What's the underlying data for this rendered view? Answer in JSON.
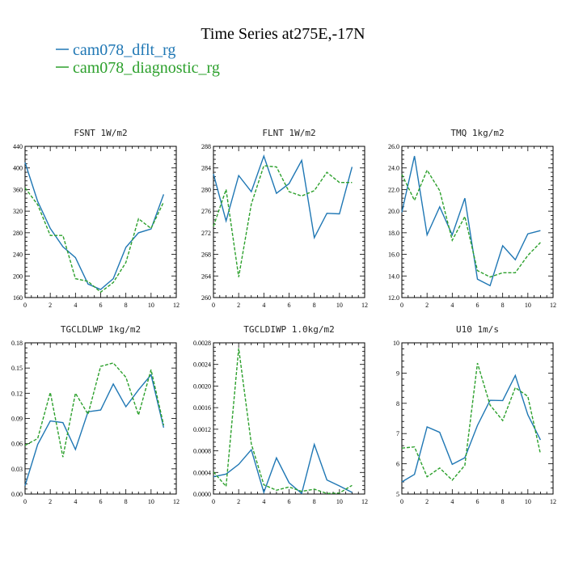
{
  "figure": {
    "title": "Time Series at275E,-17N",
    "legend": [
      {
        "label": "cam078_dflt_rg",
        "color": "#1f77b4"
      },
      {
        "label": "cam078_diagnostic_rg",
        "color": "#2ca02c"
      }
    ]
  },
  "chart_data": [
    {
      "type": "line",
      "title": "FSNT   1W/m2",
      "xlim": [
        0,
        12
      ],
      "ylim": [
        160,
        440
      ],
      "xticks": [
        "0",
        "2",
        "4",
        "6",
        "8",
        "10",
        "12"
      ],
      "yticks": [
        "160",
        "200",
        "240",
        "280",
        "320",
        "360",
        "400",
        "440"
      ],
      "x": [
        0,
        1,
        2,
        3,
        4,
        5,
        6,
        7,
        8,
        9,
        10,
        11
      ],
      "series": [
        {
          "name": "cam078_dflt_rg",
          "color": "#1f77b4",
          "dash": "solid",
          "values": [
            410,
            338,
            288,
            254,
            234,
            185,
            175,
            195,
            253,
            280,
            287,
            351
          ]
        },
        {
          "name": "cam078_diagnostic_rg",
          "color": "#2ca02c",
          "dash": "dashed",
          "values": [
            363,
            332,
            275,
            275,
            195,
            190,
            170,
            188,
            225,
            306,
            288,
            337
          ]
        }
      ]
    },
    {
      "type": "line",
      "title": "FLNT   1W/m2",
      "xlim": [
        0,
        12
      ],
      "ylim": [
        260,
        288
      ],
      "xticks": [
        "0",
        "2",
        "4",
        "6",
        "8",
        "10",
        "12"
      ],
      "yticks": [
        "260",
        "264",
        "268",
        "272",
        "276",
        "280",
        "284",
        "288"
      ],
      "x": [
        0,
        1,
        2,
        3,
        4,
        5,
        6,
        7,
        8,
        9,
        10,
        11
      ],
      "series": [
        {
          "name": "cam078_dflt_rg",
          "color": "#1f77b4",
          "dash": "solid",
          "values": [
            282.9,
            274.2,
            282.6,
            279.6,
            286.2,
            279.3,
            281.1,
            285.4,
            271.1,
            275.6,
            275.5,
            284.2
          ]
        },
        {
          "name": "cam078_diagnostic_rg",
          "color": "#2ca02c",
          "dash": "dashed",
          "values": [
            273.2,
            280.0,
            263.8,
            277.3,
            284.4,
            284.2,
            279.6,
            278.8,
            279.8,
            283.2,
            281.3,
            281.3
          ]
        }
      ]
    },
    {
      "type": "line",
      "title": "TMQ   1kg/m2",
      "xlim": [
        0,
        12
      ],
      "ylim": [
        12,
        26
      ],
      "xticks": [
        "0",
        "2",
        "4",
        "6",
        "8",
        "10",
        "12"
      ],
      "yticks": [
        "12.0",
        "14.0",
        "16.0",
        "18.0",
        "20.0",
        "22.0",
        "24.0",
        "26.0"
      ],
      "x": [
        0,
        1,
        2,
        3,
        4,
        5,
        6,
        7,
        8,
        9,
        10,
        11
      ],
      "series": [
        {
          "name": "cam078_dflt_rg",
          "color": "#1f77b4",
          "dash": "solid",
          "values": [
            19.9,
            25.1,
            17.8,
            20.4,
            17.8,
            21.2,
            13.7,
            13.1,
            16.8,
            15.5,
            17.9,
            18.2
          ]
        },
        {
          "name": "cam078_diagnostic_rg",
          "color": "#2ca02c",
          "dash": "dashed",
          "values": [
            23.4,
            21.0,
            23.8,
            21.9,
            17.3,
            19.5,
            14.5,
            13.9,
            14.3,
            14.3,
            15.9,
            17.1
          ]
        }
      ]
    },
    {
      "type": "line",
      "title": "TGCLDLWP   1kg/m2",
      "xlim": [
        0,
        12
      ],
      "ylim": [
        0,
        0.18
      ],
      "xticks": [
        "0",
        "2",
        "4",
        "6",
        "8",
        "10",
        "12"
      ],
      "yticks": [
        "0.00",
        "0.03",
        "0.06",
        "0.09",
        "0.12",
        "0.15",
        "0.18"
      ],
      "x": [
        0,
        1,
        2,
        3,
        4,
        5,
        6,
        7,
        8,
        9,
        10,
        11
      ],
      "series": [
        {
          "name": "cam078_dflt_rg",
          "color": "#1f77b4",
          "dash": "solid",
          "values": [
            0.01,
            0.059,
            0.087,
            0.085,
            0.053,
            0.098,
            0.1,
            0.131,
            0.104,
            0.124,
            0.142,
            0.079
          ]
        },
        {
          "name": "cam078_diagnostic_rg",
          "color": "#2ca02c",
          "dash": "dashed",
          "values": [
            0.058,
            0.066,
            0.121,
            0.044,
            0.12,
            0.095,
            0.152,
            0.156,
            0.139,
            0.094,
            0.148,
            0.082
          ]
        }
      ]
    },
    {
      "type": "line",
      "title": "TGCLDIWP   1.0kg/m2",
      "xlim": [
        0,
        12
      ],
      "ylim": [
        0,
        0.0028
      ],
      "xticks": [
        "0",
        "2",
        "4",
        "6",
        "8",
        "10",
        "12"
      ],
      "yticks": [
        "0.0000",
        "0.0004",
        "0.0008",
        "0.0012",
        "0.0016",
        "0.0020",
        "0.0024",
        "0.0028"
      ],
      "x": [
        0,
        1,
        2,
        3,
        4,
        5,
        6,
        7,
        8,
        9,
        10,
        11
      ],
      "series": [
        {
          "name": "cam078_dflt_rg",
          "color": "#1f77b4",
          "dash": "solid",
          "values": [
            0.00032,
            0.00037,
            0.00055,
            0.00082,
            3e-05,
            0.00067,
            0.00021,
            1e-05,
            0.00092,
            0.00026,
            0.00015,
            3e-05
          ]
        },
        {
          "name": "cam078_diagnostic_rg",
          "color": "#2ca02c",
          "dash": "dashed",
          "values": [
            0.00041,
            0.00014,
            0.0027,
            0.00093,
            0.00017,
            7e-05,
            0.00013,
            5e-05,
            9e-05,
            1e-05,
            2e-05,
            0.00016
          ]
        }
      ]
    },
    {
      "type": "line",
      "title": "U10   1m/s",
      "xlim": [
        0,
        12
      ],
      "ylim": [
        5,
        10
      ],
      "xticks": [
        "0",
        "2",
        "4",
        "6",
        "8",
        "10",
        "12"
      ],
      "yticks": [
        "5",
        "6",
        "7",
        "8",
        "9",
        "10"
      ],
      "x": [
        0,
        1,
        2,
        3,
        4,
        5,
        6,
        7,
        8,
        9,
        10,
        11
      ],
      "series": [
        {
          "name": "cam078_dflt_rg",
          "color": "#1f77b4",
          "dash": "solid",
          "values": [
            5.4,
            5.65,
            7.22,
            7.04,
            5.98,
            6.2,
            7.27,
            8.1,
            8.09,
            8.92,
            7.62,
            6.79
          ]
        },
        {
          "name": "cam078_diagnostic_rg",
          "color": "#2ca02c",
          "dash": "dashed",
          "values": [
            6.52,
            6.56,
            5.57,
            5.86,
            5.46,
            5.95,
            9.33,
            7.94,
            7.43,
            8.52,
            8.23,
            6.33
          ]
        }
      ]
    }
  ]
}
